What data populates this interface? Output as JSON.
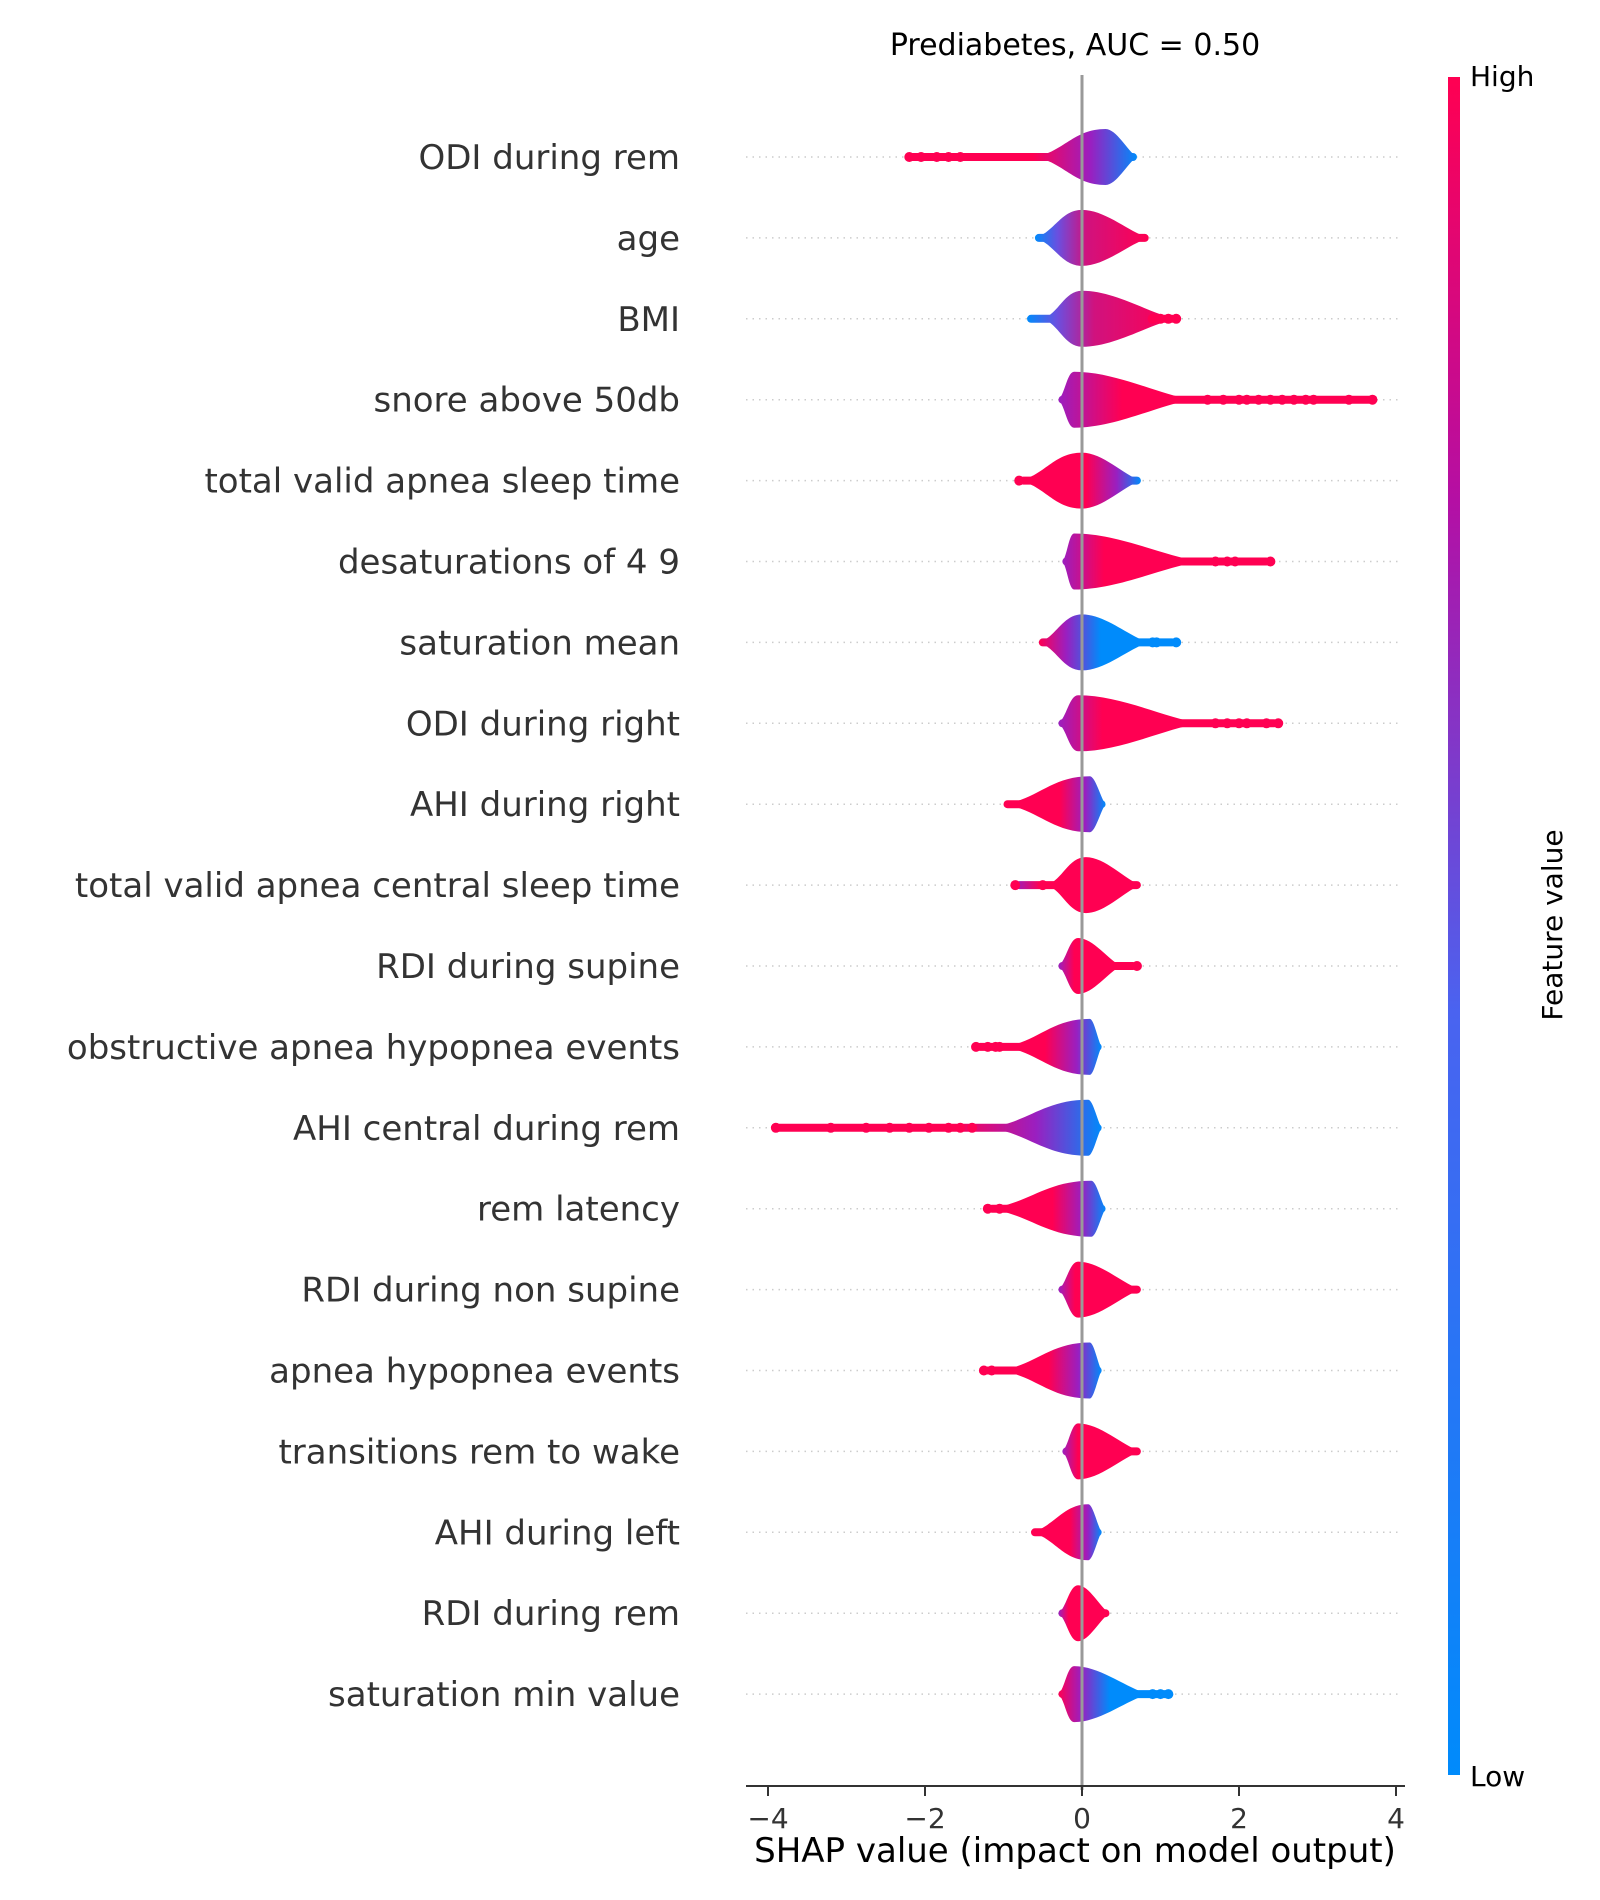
{
  "chart_data": {
    "type": "scatter",
    "subtype": "shap-beeswarm",
    "title": "Prediabetes, AUC =  0.50",
    "xlabel": "SHAP value (impact on model output)",
    "xlim": [
      -4.3,
      4.1
    ],
    "xticks": [
      {
        "value": -4,
        "label": "−4"
      },
      {
        "value": -2,
        "label": "−2"
      },
      {
        "value": 0,
        "label": "0"
      },
      {
        "value": 2,
        "label": "2"
      },
      {
        "value": 4,
        "label": "4"
      }
    ],
    "colorbar": {
      "label": "Feature value",
      "high_label": "High",
      "low_label": "Low",
      "high_color": "#ff0052",
      "low_color": "#008bfb"
    },
    "grid": false,
    "features": [
      {
        "name": "ODI during rem",
        "min": -2.25,
        "core_min": -0.6,
        "core_max": 0.7,
        "peak": 0.3,
        "max": 0.7,
        "tail_dots": [
          -2.2,
          -2.05,
          -1.85,
          -1.7,
          -1.55
        ],
        "gradient": "high-left"
      },
      {
        "name": "age",
        "min": -0.6,
        "core_min": -0.6,
        "core_max": 0.85,
        "peak": 0.0,
        "max": 0.85,
        "tail_dots": [],
        "gradient": "low-left"
      },
      {
        "name": "BMI",
        "min": -0.7,
        "core_min": -0.5,
        "core_max": 1.2,
        "peak": 0.0,
        "max": 1.2,
        "tail_dots": [
          0.9,
          1.0,
          1.1,
          1.2
        ],
        "gradient": "low-left"
      },
      {
        "name": "snore above 50db",
        "min": -0.3,
        "core_min": -0.3,
        "core_max": 1.4,
        "peak": -0.1,
        "max": 3.75,
        "tail_dots": [
          1.6,
          1.8,
          2.0,
          2.1,
          2.25,
          2.4,
          2.55,
          2.7,
          2.85,
          2.95,
          3.4,
          3.7
        ],
        "gradient": "high-right"
      },
      {
        "name": "total valid apnea sleep time",
        "min": -0.8,
        "core_min": -0.8,
        "core_max": 0.75,
        "peak": 0.0,
        "max": 0.75,
        "tail_dots": [
          -0.8
        ],
        "gradient": "high-left"
      },
      {
        "name": "desaturations of 4 9",
        "min": -0.25,
        "core_min": -0.25,
        "core_max": 1.5,
        "peak": -0.1,
        "max": 2.4,
        "tail_dots": [
          1.7,
          1.85,
          1.95,
          2.4
        ],
        "gradient": "high-right"
      },
      {
        "name": "saturation mean",
        "min": -0.55,
        "core_min": -0.55,
        "core_max": 0.85,
        "peak": 0.0,
        "max": 1.2,
        "tail_dots": [
          0.9,
          0.95,
          1.2
        ],
        "gradient": "low-right"
      },
      {
        "name": "ODI during right",
        "min": -0.3,
        "core_min": -0.3,
        "core_max": 1.5,
        "peak": -0.05,
        "max": 2.5,
        "tail_dots": [
          1.7,
          1.85,
          2.0,
          2.1,
          2.35,
          2.5
        ],
        "gradient": "high-right"
      },
      {
        "name": "AHI during right",
        "min": -1.0,
        "core_min": -1.0,
        "core_max": 0.3,
        "peak": 0.1,
        "max": 0.3,
        "tail_dots": [],
        "gradient": "high-left"
      },
      {
        "name": "total valid apnea central sleep time",
        "min": -0.85,
        "core_min": -0.45,
        "core_max": 0.75,
        "peak": 0.05,
        "max": 0.75,
        "tail_dots": [
          -0.85,
          -0.5
        ],
        "gradient": "high-right"
      },
      {
        "name": "RDI during supine",
        "min": -0.3,
        "core_min": -0.3,
        "core_max": 0.5,
        "peak": -0.05,
        "max": 0.7,
        "tail_dots": [
          0.7
        ],
        "gradient": "high-right"
      },
      {
        "name": "obstructive apnea hypopnea events",
        "min": -1.35,
        "core_min": -1.0,
        "core_max": 0.25,
        "peak": 0.1,
        "max": 0.25,
        "tail_dots": [
          -1.35,
          -1.2,
          -1.1,
          -1.05
        ],
        "gradient": "high-left"
      },
      {
        "name": "AHI central during rem",
        "min": -3.95,
        "core_min": -1.2,
        "core_max": 0.25,
        "peak": 0.08,
        "max": 0.25,
        "tail_dots": [
          -3.9,
          -3.2,
          -2.75,
          -2.45,
          -2.2,
          -1.95,
          -1.7,
          -1.55,
          -1.4
        ],
        "gradient": "high-left"
      },
      {
        "name": "rem latency",
        "min": -1.2,
        "core_min": -1.2,
        "core_max": 0.3,
        "peak": 0.12,
        "max": 0.3,
        "tail_dots": [
          -1.2,
          -1.05
        ],
        "gradient": "high-left"
      },
      {
        "name": "RDI during non supine",
        "min": -0.3,
        "core_min": -0.3,
        "core_max": 0.75,
        "peak": -0.05,
        "max": 0.75,
        "tail_dots": [],
        "gradient": "high-right"
      },
      {
        "name": "apnea hypopnea events",
        "min": -1.25,
        "core_min": -1.05,
        "core_max": 0.25,
        "peak": 0.1,
        "max": 0.25,
        "tail_dots": [
          -1.25,
          -1.15
        ],
        "gradient": "high-left"
      },
      {
        "name": "transitions rem to wake",
        "min": -0.25,
        "core_min": -0.25,
        "core_max": 0.75,
        "peak": -0.05,
        "max": 0.75,
        "tail_dots": [],
        "gradient": "high-right"
      },
      {
        "name": "AHI during left",
        "min": -0.65,
        "core_min": -0.65,
        "core_max": 0.25,
        "peak": 0.08,
        "max": 0.25,
        "tail_dots": [],
        "gradient": "high-left"
      },
      {
        "name": "RDI during rem",
        "min": -0.3,
        "core_min": -0.3,
        "core_max": 0.35,
        "peak": -0.05,
        "max": 0.35,
        "tail_dots": [],
        "gradient": "high-right"
      },
      {
        "name": "saturation min value",
        "min": -0.3,
        "core_min": -0.3,
        "core_max": 0.85,
        "peak": -0.1,
        "max": 1.15,
        "tail_dots": [
          0.9,
          1.0,
          1.1
        ],
        "gradient": "low-right"
      }
    ]
  }
}
